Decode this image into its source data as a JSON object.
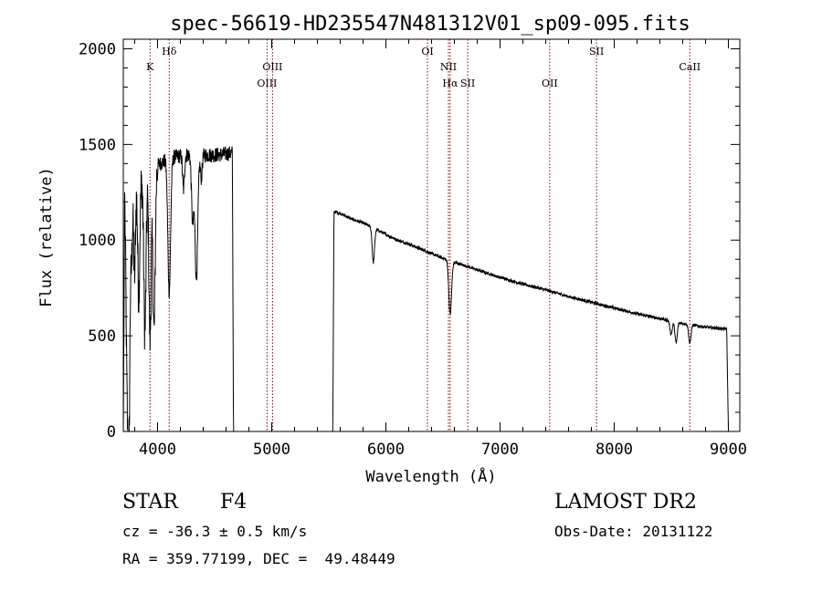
{
  "chart_data": {
    "type": "line",
    "title": "spec-56619-HD235547N481312V01_sp09-095.fits",
    "xlabel": "Wavelength (Å)",
    "ylabel": "Flux (relative)",
    "xlim": [
      3700,
      9100
    ],
    "ylim": [
      0,
      2050
    ],
    "x_ticks": [
      4000,
      5000,
      6000,
      7000,
      8000,
      9000
    ],
    "y_ticks": [
      0,
      500,
      1000,
      1500,
      2000
    ],
    "x_tick_labels": [
      "4000",
      "5000",
      "6000",
      "7000",
      "8000",
      "9000"
    ],
    "y_tick_labels": [
      "0",
      "500",
      "1000",
      "1500",
      "2000"
    ],
    "line_color": "#000000",
    "marker_color": "#8b0000",
    "gaps": [
      [
        4660,
        5540
      ]
    ],
    "continuum": [
      [
        3700,
        1250
      ],
      [
        3800,
        1310
      ],
      [
        3900,
        1320
      ],
      [
        4000,
        1390
      ],
      [
        4100,
        1430
      ],
      [
        4200,
        1440
      ],
      [
        4300,
        1450
      ],
      [
        4400,
        1445
      ],
      [
        4500,
        1445
      ],
      [
        4600,
        1450
      ],
      [
        4650,
        1455
      ],
      [
        4660,
        1455
      ],
      [
        5540,
        1150
      ],
      [
        5600,
        1140
      ],
      [
        5700,
        1110
      ],
      [
        5800,
        1090
      ],
      [
        5900,
        1060
      ],
      [
        6000,
        1030
      ],
      [
        6100,
        1000
      ],
      [
        6200,
        980
      ],
      [
        6300,
        955
      ],
      [
        6400,
        930
      ],
      [
        6500,
        905
      ],
      [
        6600,
        885
      ],
      [
        6700,
        865
      ],
      [
        6800,
        845
      ],
      [
        6900,
        825
      ],
      [
        7000,
        805
      ],
      [
        7200,
        770
      ],
      [
        7400,
        740
      ],
      [
        7600,
        705
      ],
      [
        7800,
        675
      ],
      [
        8000,
        645
      ],
      [
        8200,
        615
      ],
      [
        8400,
        590
      ],
      [
        8600,
        565
      ],
      [
        8800,
        545
      ],
      [
        8990,
        535
      ]
    ],
    "absorption_lines": [
      {
        "wave": 3734,
        "depth": 1000,
        "width": 10
      },
      {
        "wave": 3750,
        "depth": 1100,
        "width": 8
      },
      {
        "wave": 3771,
        "depth": 400,
        "width": 8
      },
      {
        "wave": 3798,
        "depth": 500,
        "width": 8
      },
      {
        "wave": 3835,
        "depth": 600,
        "width": 9
      },
      {
        "wave": 3889,
        "depth": 800,
        "width": 10
      },
      {
        "wave": 3934,
        "depth": 850,
        "width": 10
      },
      {
        "wave": 3969,
        "depth": 850,
        "width": 10
      },
      {
        "wave": 4102,
        "depth": 700,
        "width": 12
      },
      {
        "wave": 4227,
        "depth": 180,
        "width": 8
      },
      {
        "wave": 4307,
        "depth": 350,
        "width": 10
      },
      {
        "wave": 4340,
        "depth": 650,
        "width": 12
      },
      {
        "wave": 4383,
        "depth": 120,
        "width": 8
      },
      {
        "wave": 5890,
        "depth": 180,
        "width": 10
      },
      {
        "wave": 6563,
        "depth": 280,
        "width": 12
      },
      {
        "wave": 8498,
        "depth": 70,
        "width": 10
      },
      {
        "wave": 8542,
        "depth": 110,
        "width": 10
      },
      {
        "wave": 8662,
        "depth": 100,
        "width": 10
      }
    ],
    "edges": [
      {
        "from": 3700,
        "to": 3712,
        "from_flux": 0,
        "to_flux": 1250
      },
      {
        "from": 4655,
        "to": 4665,
        "from_flux": 1455,
        "to_flux": 0
      },
      {
        "from": 5535,
        "to": 5545,
        "from_flux": 0,
        "to_flux": 1150
      },
      {
        "from": 8985,
        "to": 9000,
        "from_flux": 535,
        "to_flux": 0
      }
    ],
    "noise": [
      {
        "from": 3700,
        "to": 4000,
        "amp": 130
      },
      {
        "from": 4000,
        "to": 4660,
        "amp": 40
      },
      {
        "from": 5540,
        "to": 9000,
        "amp": 8
      }
    ],
    "line_markers": [
      {
        "label": "K",
        "wave": 3934,
        "row": 1
      },
      {
        "label": "Hδ",
        "wave": 4102,
        "row": 0
      },
      {
        "label": "OIII",
        "wave": 4959,
        "row": 2
      },
      {
        "label": "OIII",
        "wave": 5007,
        "row": 1
      },
      {
        "label": "OI",
        "wave": 6364,
        "row": 0
      },
      {
        "label": "NII",
        "wave": 6548,
        "row": 1
      },
      {
        "label": "Hα",
        "wave": 6563,
        "row": 2
      },
      {
        "label": "SII",
        "wave": 6717,
        "row": 2
      },
      {
        "label": "OII",
        "wave": 7435,
        "row": 2
      },
      {
        "label": "SII",
        "wave": 7845,
        "row": 0
      },
      {
        "label": "CaII",
        "wave": 8662,
        "row": 1
      }
    ]
  },
  "info": {
    "object_class": "STAR",
    "subclass": "F4",
    "survey": "LAMOST DR2",
    "redshift": "cz = -36.3 ± 0.5 km/s",
    "obs_date": "Obs-Date: 20131122",
    "coords": "RA = 359.77199, DEC =  49.48449"
  }
}
